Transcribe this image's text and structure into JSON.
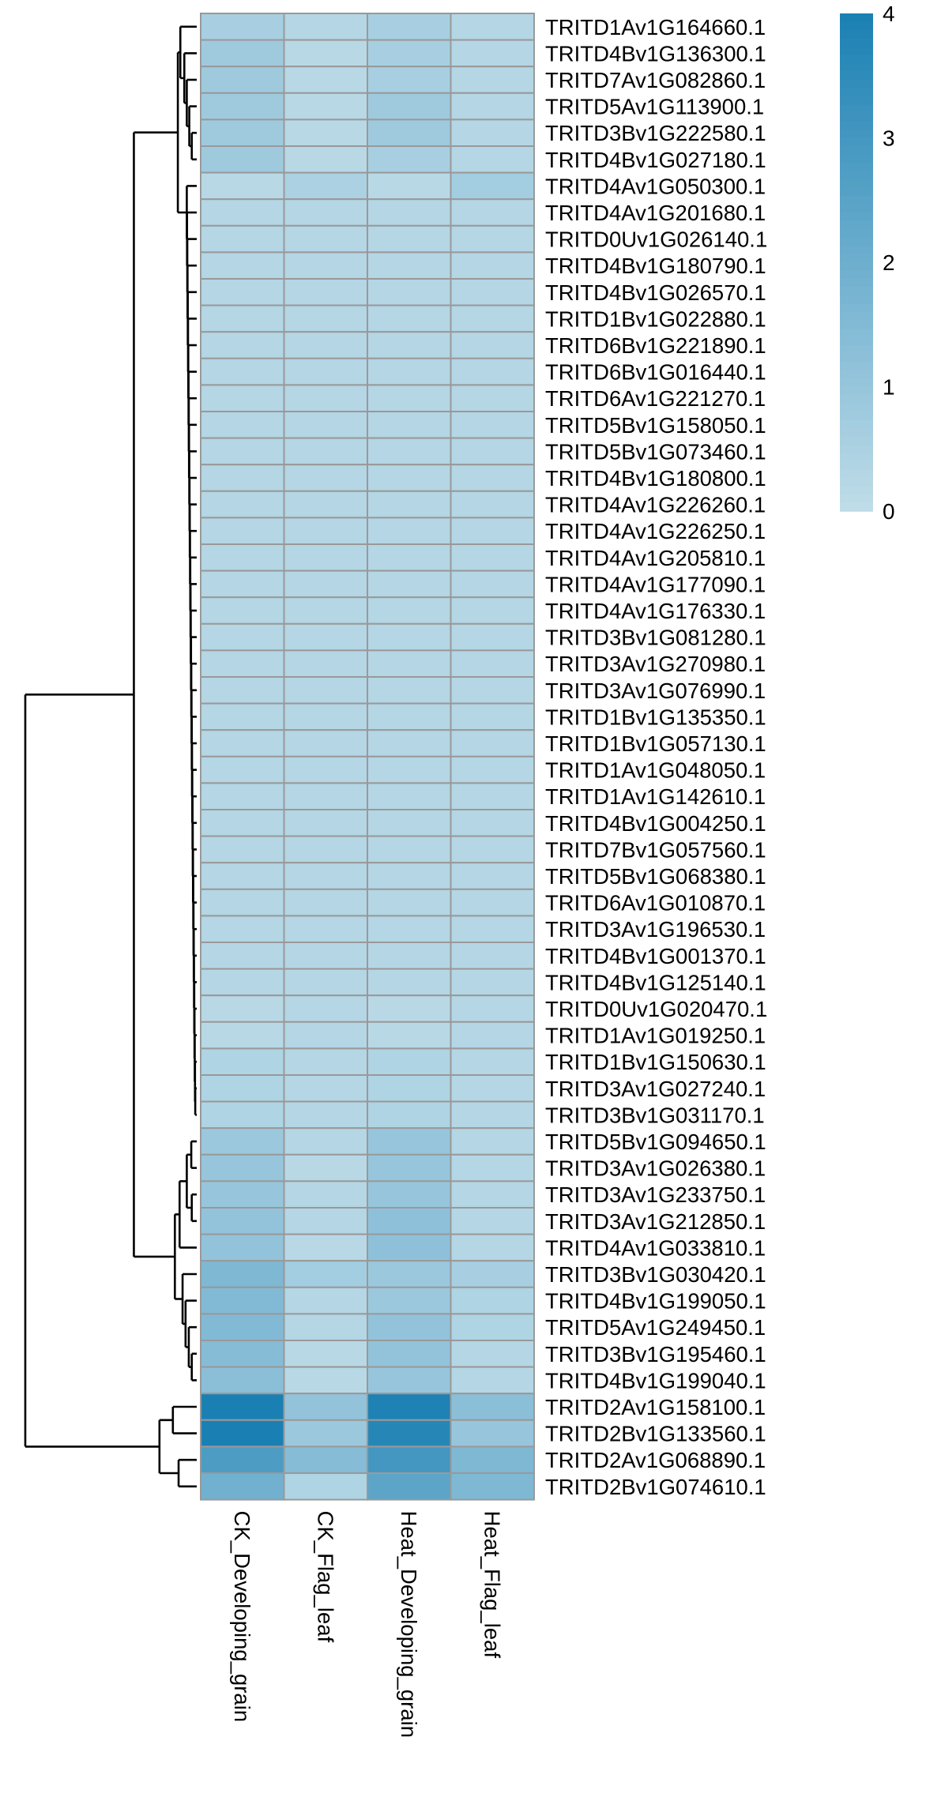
{
  "chart_data": {
    "type": "heatmap",
    "title": "",
    "columns": [
      "CK_Developing_grain",
      "CK_Flag_leaf",
      "Heat_Developing_grain",
      "Heat_Flag_leaf"
    ],
    "rows": [
      "TRITD1Av1G164660.1",
      "TRITD4Bv1G136300.1",
      "TRITD7Av1G082860.1",
      "TRITD5Av1G113900.1",
      "TRITD3Bv1G222580.1",
      "TRITD4Bv1G027180.1",
      "TRITD4Av1G050300.1",
      "TRITD4Av1G201680.1",
      "TRITD0Uv1G026140.1",
      "TRITD4Bv1G180790.1",
      "TRITD4Bv1G026570.1",
      "TRITD1Bv1G022880.1",
      "TRITD6Bv1G221890.1",
      "TRITD6Bv1G016440.1",
      "TRITD6Av1G221270.1",
      "TRITD5Bv1G158050.1",
      "TRITD5Bv1G073460.1",
      "TRITD4Bv1G180800.1",
      "TRITD4Av1G226260.1",
      "TRITD4Av1G226250.1",
      "TRITD4Av1G205810.1",
      "TRITD4Av1G177090.1",
      "TRITD4Av1G176330.1",
      "TRITD3Bv1G081280.1",
      "TRITD3Av1G270980.1",
      "TRITD3Av1G076990.1",
      "TRITD1Bv1G135350.1",
      "TRITD1Bv1G057130.1",
      "TRITD1Av1G048050.1",
      "TRITD1Av1G142610.1",
      "TRITD4Bv1G004250.1",
      "TRITD7Bv1G057560.1",
      "TRITD5Bv1G068380.1",
      "TRITD6Av1G010870.1",
      "TRITD3Av1G196530.1",
      "TRITD4Bv1G001370.1",
      "TRITD4Bv1G125140.1",
      "TRITD0Uv1G020470.1",
      "TRITD1Av1G019250.1",
      "TRITD1Bv1G150630.1",
      "TRITD3Av1G027240.1",
      "TRITD3Bv1G031170.1",
      "TRITD5Bv1G094650.1",
      "TRITD3Av1G026380.1",
      "TRITD3Av1G233750.1",
      "TRITD3Av1G212850.1",
      "TRITD4Av1G033810.1",
      "TRITD3Bv1G030420.1",
      "TRITD4Bv1G199050.1",
      "TRITD5Av1G249450.1",
      "TRITD3Bv1G195460.1",
      "TRITD4Bv1G199040.1",
      "TRITD2Av1G158100.1",
      "TRITD2Bv1G133560.1",
      "TRITD2Av1G068890.1",
      "TRITD2Bv1G074610.1"
    ],
    "values": [
      [
        0.6,
        0.3,
        0.6,
        0.3
      ],
      [
        0.8,
        0.2,
        0.6,
        0.3
      ],
      [
        0.8,
        0.2,
        0.6,
        0.3
      ],
      [
        0.8,
        0.2,
        0.8,
        0.3
      ],
      [
        0.8,
        0.2,
        0.8,
        0.3
      ],
      [
        0.8,
        0.2,
        0.6,
        0.3
      ],
      [
        0.2,
        0.5,
        0.2,
        0.7
      ],
      [
        0.3,
        0.3,
        0.3,
        0.3
      ],
      [
        0.3,
        0.3,
        0.3,
        0.3
      ],
      [
        0.3,
        0.3,
        0.3,
        0.3
      ],
      [
        0.3,
        0.3,
        0.3,
        0.3
      ],
      [
        0.3,
        0.3,
        0.3,
        0.3
      ],
      [
        0.3,
        0.3,
        0.3,
        0.3
      ],
      [
        0.3,
        0.3,
        0.3,
        0.3
      ],
      [
        0.3,
        0.3,
        0.3,
        0.3
      ],
      [
        0.3,
        0.3,
        0.3,
        0.3
      ],
      [
        0.3,
        0.3,
        0.3,
        0.3
      ],
      [
        0.3,
        0.3,
        0.3,
        0.3
      ],
      [
        0.3,
        0.3,
        0.3,
        0.3
      ],
      [
        0.3,
        0.3,
        0.3,
        0.3
      ],
      [
        0.3,
        0.3,
        0.3,
        0.3
      ],
      [
        0.3,
        0.3,
        0.3,
        0.3
      ],
      [
        0.3,
        0.3,
        0.3,
        0.3
      ],
      [
        0.3,
        0.3,
        0.3,
        0.3
      ],
      [
        0.3,
        0.3,
        0.3,
        0.3
      ],
      [
        0.3,
        0.3,
        0.3,
        0.3
      ],
      [
        0.3,
        0.3,
        0.3,
        0.3
      ],
      [
        0.3,
        0.3,
        0.3,
        0.3
      ],
      [
        0.3,
        0.3,
        0.3,
        0.3
      ],
      [
        0.3,
        0.3,
        0.3,
        0.3
      ],
      [
        0.3,
        0.3,
        0.3,
        0.3
      ],
      [
        0.3,
        0.3,
        0.3,
        0.3
      ],
      [
        0.3,
        0.3,
        0.3,
        0.3
      ],
      [
        0.3,
        0.3,
        0.3,
        0.3
      ],
      [
        0.3,
        0.3,
        0.3,
        0.3
      ],
      [
        0.3,
        0.3,
        0.3,
        0.3
      ],
      [
        0.3,
        0.3,
        0.3,
        0.3
      ],
      [
        0.2,
        0.3,
        0.2,
        0.3
      ],
      [
        0.2,
        0.3,
        0.2,
        0.3
      ],
      [
        0.4,
        0.3,
        0.4,
        0.3
      ],
      [
        0.4,
        0.3,
        0.4,
        0.3
      ],
      [
        0.4,
        0.3,
        0.4,
        0.3
      ],
      [
        0.9,
        0.3,
        1.0,
        0.3
      ],
      [
        1.0,
        0.2,
        1.0,
        0.3
      ],
      [
        1.0,
        0.3,
        1.0,
        0.3
      ],
      [
        1.1,
        0.3,
        1.2,
        0.3
      ],
      [
        1.1,
        0.2,
        1.2,
        0.3
      ],
      [
        1.6,
        0.7,
        0.9,
        0.6
      ],
      [
        1.5,
        0.3,
        0.9,
        0.4
      ],
      [
        1.5,
        0.3,
        1.1,
        0.4
      ],
      [
        1.4,
        0.2,
        1.1,
        0.3
      ],
      [
        1.3,
        0.2,
        1.0,
        0.3
      ],
      [
        4.0,
        1.1,
        3.9,
        1.3
      ],
      [
        4.0,
        0.9,
        3.7,
        1.0
      ],
      [
        2.8,
        1.4,
        3.0,
        1.6
      ],
      [
        1.9,
        0.4,
        2.4,
        1.6
      ]
    ],
    "color_scale": {
      "min": 0,
      "max": 4,
      "low_color": "#c0dde9",
      "high_color": "#1a80b3"
    },
    "legend_ticks": [
      "0",
      "1",
      "2",
      "3",
      "4"
    ],
    "row_dendrogram": true,
    "legend_position": "right"
  }
}
